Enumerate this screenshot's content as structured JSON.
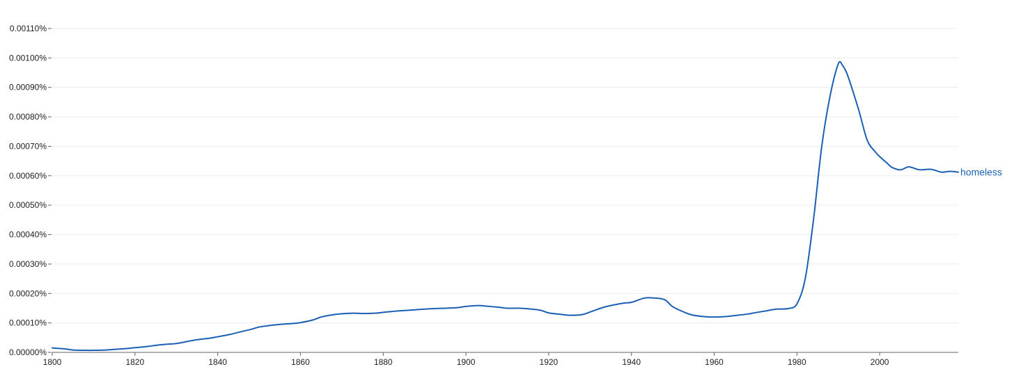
{
  "chart_data": {
    "type": "line",
    "title": "",
    "xlabel": "",
    "ylabel": "",
    "xlim": [
      1800,
      2019
    ],
    "ylim": [
      0,
      0.0011
    ],
    "grid": true,
    "x_ticks": [
      1800,
      1820,
      1840,
      1860,
      1880,
      1900,
      1920,
      1940,
      1960,
      1980,
      2000
    ],
    "x_tick_labels": [
      "1800",
      "1820",
      "1840",
      "1860",
      "1880",
      "1900",
      "1920",
      "1940",
      "1960",
      "1980",
      "2000"
    ],
    "y_ticks": [
      0,
      0.0001,
      0.0002,
      0.0003,
      0.0004,
      0.0005,
      0.0006,
      0.0007,
      0.0008,
      0.0009,
      0.001,
      0.0011
    ],
    "y_tick_labels": [
      "0.00000%",
      "0.00010%",
      "0.00020%",
      "0.00030%",
      "0.00040%",
      "0.00050%",
      "0.00060%",
      "0.00070%",
      "0.00080%",
      "0.00090%",
      "0.00100%",
      "0.00110%"
    ],
    "series": [
      {
        "name": "homeless",
        "color": "#1a5fb4",
        "x": [
          1800,
          1803,
          1805,
          1808,
          1810,
          1813,
          1815,
          1818,
          1820,
          1823,
          1825,
          1828,
          1830,
          1833,
          1835,
          1838,
          1840,
          1843,
          1845,
          1848,
          1850,
          1853,
          1855,
          1858,
          1860,
          1863,
          1865,
          1868,
          1870,
          1873,
          1875,
          1878,
          1880,
          1883,
          1885,
          1888,
          1890,
          1893,
          1895,
          1898,
          1900,
          1903,
          1905,
          1908,
          1910,
          1913,
          1915,
          1918,
          1920,
          1923,
          1925,
          1928,
          1930,
          1933,
          1935,
          1938,
          1940,
          1943,
          1945,
          1948,
          1950,
          1953,
          1955,
          1958,
          1960,
          1963,
          1965,
          1968,
          1970,
          1973,
          1975,
          1978,
          1980,
          1982,
          1984,
          1986,
          1988,
          1990,
          1991,
          1992,
          1993,
          1995,
          1997,
          1999,
          2000,
          2002,
          2003,
          2005,
          2007,
          2009,
          2010,
          2012,
          2013,
          2015,
          2017,
          2019
        ],
        "y": [
          1.5e-05,
          1.2e-05,
          8e-06,
          7e-06,
          7e-06,
          8e-06,
          1e-05,
          1.3e-05,
          1.6e-05,
          2e-05,
          2.4e-05,
          2.8e-05,
          3e-05,
          3.8e-05,
          4.3e-05,
          4.8e-05,
          5.3e-05,
          6.1e-05,
          6.8e-05,
          7.8e-05,
          8.6e-05,
          9.2e-05,
          9.5e-05,
          9.8e-05,
          0.000101,
          0.00011,
          0.00012,
          0.000128,
          0.000131,
          0.000133,
          0.000132,
          0.000133,
          0.000136,
          0.00014,
          0.000142,
          0.000145,
          0.000147,
          0.000149,
          0.00015,
          0.000152,
          0.000156,
          0.000159,
          0.000157,
          0.000153,
          0.00015,
          0.00015,
          0.000148,
          0.000143,
          0.000134,
          0.000129,
          0.000126,
          0.000128,
          0.000137,
          0.000152,
          0.000159,
          0.000167,
          0.00017,
          0.000184,
          0.000185,
          0.000179,
          0.000155,
          0.000135,
          0.000126,
          0.000121,
          0.00012,
          0.000122,
          0.000125,
          0.00013,
          0.000135,
          0.000142,
          0.000147,
          0.000149,
          0.000165,
          0.00025,
          0.00045,
          0.0007,
          0.00087,
          0.00098,
          0.000975,
          0.00095,
          0.00091,
          0.00082,
          0.00072,
          0.00068,
          0.000665,
          0.00064,
          0.000628,
          0.00062,
          0.00063,
          0.000622,
          0.00062,
          0.000622,
          0.00062,
          0.000612,
          0.000615,
          0.000612
        ]
      }
    ]
  }
}
